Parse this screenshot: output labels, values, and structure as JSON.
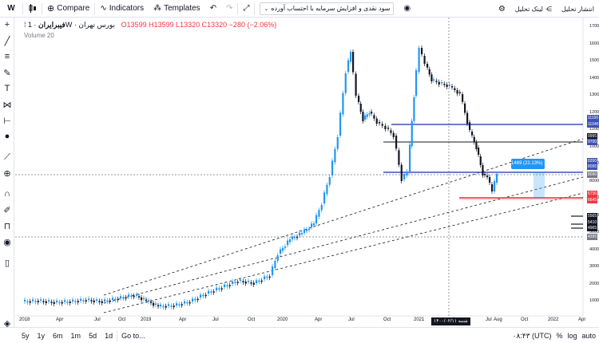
{
  "toolbar": {
    "symbol_button": "W",
    "compare_label": "Compare",
    "indicators_label": "Indicators",
    "templates_label": "Templates",
    "study_name": "سود نقدی و افزایش سرمایه با احتساب آورده",
    "share_link_label": "لینک تحلیل",
    "publish_label": "انتشار تحلیل"
  },
  "legend": {
    "symbol": "فیبرایران",
    "interval": "1W",
    "exchange": "بورس تهران",
    "ohlc": "O13599 H13599 L13320 C13320 −280 (−2.06%)",
    "volume": "Volume 20"
  },
  "price_axis": {
    "ticks": [
      "17000",
      "16000",
      "15000",
      "14000",
      "13000",
      "12000",
      "11000",
      "10000",
      "9000",
      "8000",
      "7000",
      "6000",
      "5000",
      "4000",
      "3000",
      "2000",
      "1000"
    ],
    "tags": [
      {
        "text": "11150",
        "color": "#3f51b5"
      },
      {
        "text": "11045",
        "color": "#3f51b5"
      },
      {
        "text": "9995",
        "color": "#131722"
      },
      {
        "text": "9700",
        "color": "#3f51b5"
      },
      {
        "text": "8200",
        "color": "#3f51b5"
      },
      {
        "text": "8095",
        "color": "#3f51b5"
      },
      {
        "text": "8090",
        "color": "#787b86"
      },
      {
        "text": "6730",
        "color": "#f23645"
      },
      {
        "text": "6645",
        "color": "#f23645"
      },
      {
        "text": "5565",
        "color": "#131722"
      },
      {
        "text": "5410",
        "color": "#131722"
      },
      {
        "text": "4965",
        "color": "#131722"
      },
      {
        "text": "4395",
        "color": "#787b86"
      }
    ]
  },
  "time_axis": {
    "ticks": [
      "2018",
      "Apr",
      "Jul",
      "Oct",
      "2019",
      "Apr",
      "Jul",
      "Oct",
      "2020",
      "Apr",
      "Jul",
      "Oct",
      "2021",
      "Apr",
      "Jul",
      "Aug",
      "Oct",
      "2022",
      "Apr"
    ],
    "crosshair_date": "۱۴۰۰/۰۲/۱۱ شنبه"
  },
  "measure": {
    "text": "1469 (22.13%) 1469"
  },
  "bottom": {
    "ranges": [
      "5y",
      "1y",
      "6m",
      "1m",
      "5d",
      "1d"
    ],
    "goto": "Go to...",
    "clock": "۰۸:۴۳ (UTC)",
    "percent": "%",
    "log": "log",
    "auto": "auto"
  },
  "colors": {
    "up": "#2196f3",
    "down": "#131722",
    "accent": "#2962ff"
  }
}
